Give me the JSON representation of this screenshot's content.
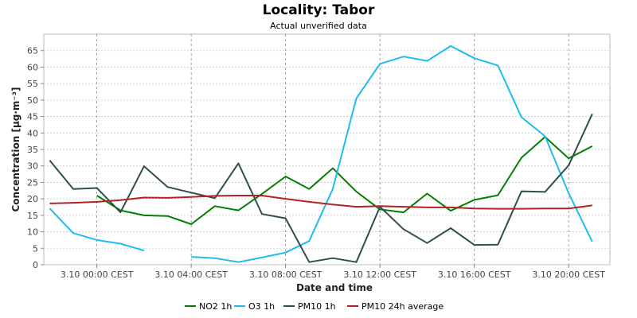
{
  "chart_data": {
    "type": "line",
    "title": "Locality: Tabor",
    "subtitle": "Actual unverified data",
    "xlabel": "Date and time",
    "ylabel": "Concentration [µg·m⁻³]",
    "ylim": [
      0,
      70
    ],
    "y_ticks": [
      0,
      5,
      10,
      15,
      20,
      25,
      30,
      35,
      40,
      45,
      50,
      55,
      60,
      65
    ],
    "x_range_hours": [
      -2.25,
      21.75
    ],
    "x_ticks": [
      {
        "hour": 0,
        "label": "3.10 00:00 CEST"
      },
      {
        "hour": 4,
        "label": "3.10 04:00 CEST"
      },
      {
        "hour": 8,
        "label": "3.10 08:00 CEST"
      },
      {
        "hour": 12,
        "label": "3.10 12:00 CEST"
      },
      {
        "hour": 16,
        "label": "3.10 16:00 CEST"
      },
      {
        "hour": 20,
        "label": "3.10 20:00 CEST"
      }
    ],
    "x_hours": [
      -2,
      -1,
      0,
      1,
      2,
      3,
      4,
      5,
      6,
      7,
      8,
      9,
      10,
      11,
      12,
      13,
      14,
      15,
      16,
      17,
      18,
      19,
      20,
      21
    ],
    "grid": true,
    "legend_position": "bottom",
    "series": [
      {
        "name": "NO2 1h",
        "color": "#008000",
        "values": [
          null,
          null,
          21,
          16.5,
          15,
          14.8,
          12.3,
          17.8,
          16.5,
          21.5,
          26.8,
          23,
          29.3,
          22.2,
          16.8,
          15.9,
          21.6,
          16.4,
          19.7,
          21.1,
          32.5,
          38.8,
          32.3,
          36
        ]
      },
      {
        "name": "O3 1h",
        "color": "#1ebcee",
        "values": [
          17.1,
          9.6,
          7.5,
          6.4,
          4.3,
          null,
          2.4,
          2,
          0.8,
          2.2,
          3.7,
          7.2,
          23,
          50.5,
          61,
          63.2,
          61.9,
          66.4,
          62.7,
          60.5,
          44.8,
          39,
          21.7,
          7
        ]
      },
      {
        "name": "PM10 1h",
        "color": "#2f4f4f",
        "values": [
          31.7,
          23,
          23.3,
          15.9,
          29.9,
          23.6,
          21.9,
          20.2,
          30.8,
          15.4,
          14.1,
          0.8,
          2,
          0.8,
          17.6,
          10.8,
          6.6,
          11.1,
          6,
          6.1,
          22.3,
          22.1,
          30.2,
          45.8
        ]
      },
      {
        "name": "PM10 24h average",
        "color": "#b22222",
        "values": [
          18.6,
          18.8,
          19.1,
          19.6,
          20.4,
          20.3,
          20.6,
          20.9,
          21,
          21,
          20,
          19.1,
          18.3,
          17.6,
          17.8,
          17.6,
          17.4,
          17.4,
          17.1,
          17,
          17,
          17.1,
          17.1,
          18
        ]
      }
    ]
  }
}
